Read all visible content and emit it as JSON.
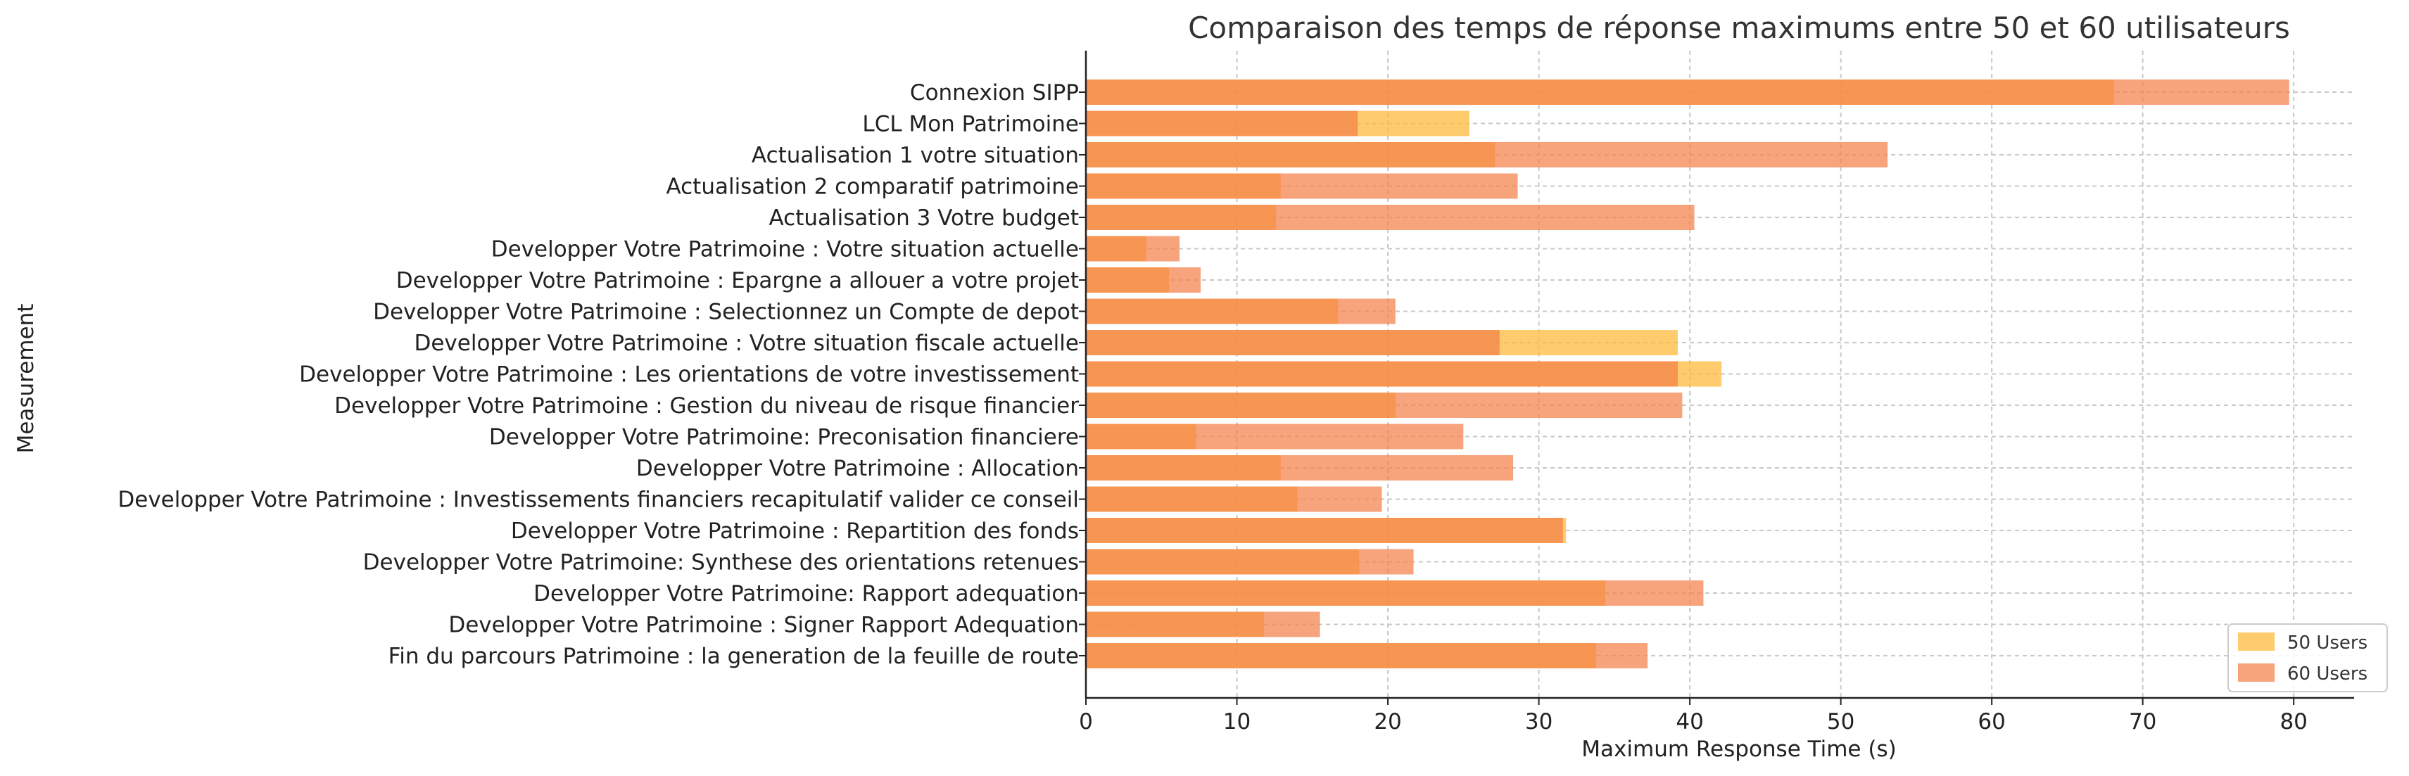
{
  "chart_data": {
    "type": "bar",
    "orientation": "horizontal",
    "title": "Comparaison des temps de réponse maximums entre 50 et 60 utilisateurs",
    "xlabel": "Maximum Response Time (s)",
    "ylabel": "Measurement",
    "xlim": [
      0,
      84
    ],
    "xticks": [
      0,
      10,
      20,
      30,
      40,
      50,
      60,
      70,
      80
    ],
    "grid": true,
    "legend_position": "bottom-right",
    "categories": [
      "Connexion SIPP",
      "LCL Mon Patrimoine",
      "Actualisation 1 votre situation",
      "Actualisation 2 comparatif patrimoine",
      "Actualisation 3 Votre budget",
      "Developper Votre Patrimoine : Votre situation actuelle",
      "Developper Votre Patrimoine : Epargne a allouer a votre projet",
      "Developper Votre Patrimoine : Selectionnez un Compte de depot",
      "Developper Votre Patrimoine : Votre situation fiscale actuelle",
      "Developper Votre Patrimoine : Les orientations de votre investissement",
      "Developper Votre Patrimoine : Gestion du niveau de risque financier",
      "Developper Votre Patrimoine: Preconisation financiere",
      "Developper Votre Patrimoine : Allocation",
      "Developper Votre Patrimoine : Investissements financiers recapitulatif valider ce conseil",
      "Developper Votre Patrimoine : Repartition des fonds",
      "Developper Votre Patrimoine: Synthese des orientations retenues",
      "Developper Votre Patrimoine: Rapport adequation",
      "Developper Votre Patrimoine : Signer Rapport Adequation",
      "Fin du parcours Patrimoine : la generation de la feuille de route"
    ],
    "series": [
      {
        "name": "50 Users",
        "color": "#FDB93C",
        "opacity": 0.75,
        "values": [
          68.1,
          25.4,
          27.1,
          12.9,
          12.6,
          4.0,
          5.5,
          16.7,
          39.2,
          42.1,
          20.5,
          7.3,
          12.9,
          14.0,
          31.8,
          18.1,
          34.4,
          11.8,
          33.8
        ]
      },
      {
        "name": "60 Users",
        "color": "#F4804A",
        "opacity": 0.72,
        "values": [
          79.7,
          18.0,
          53.1,
          28.6,
          40.3,
          6.2,
          7.6,
          20.5,
          27.4,
          39.2,
          39.5,
          25.0,
          28.3,
          19.6,
          31.6,
          21.7,
          40.9,
          15.5,
          37.2
        ]
      }
    ]
  }
}
